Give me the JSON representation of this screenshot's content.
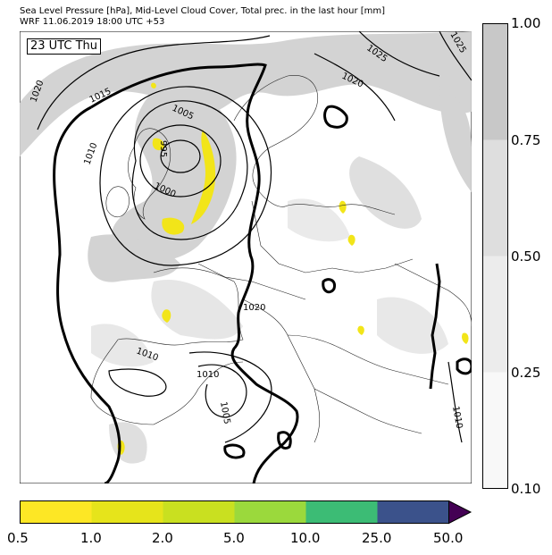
{
  "header": {
    "line1": "Sea Level Pressure [hPa], Mid-Level Cloud Cover, Total prec. in the last hour [mm]",
    "line2": "WRF 11.06.2019 18:00 UTC +53"
  },
  "map": {
    "time_label": "23 UTC Thu",
    "isobar_labels": [
      "1020",
      "1015",
      "1010",
      "1005",
      "995",
      "1000",
      "1025",
      "1020",
      "1020",
      "1010",
      "1010",
      "1005",
      "1010",
      "1025"
    ]
  },
  "cloud_legend": {
    "ticks": [
      "1.00",
      "0.75",
      "0.50",
      "0.25",
      "0.10"
    ],
    "colors": [
      "#c8c8c8",
      "#dedede",
      "#ececec",
      "#f8f8f8"
    ]
  },
  "precip_legend": {
    "ticks": [
      "0.5",
      "1.0",
      "2.0",
      "5.0",
      "10.0",
      "25.0",
      "50.0"
    ],
    "colors": [
      "#fde725",
      "#e6e41b",
      "#c9e020",
      "#9bd93c",
      "#3cbc75",
      "#3b528b",
      "#440154"
    ]
  }
}
